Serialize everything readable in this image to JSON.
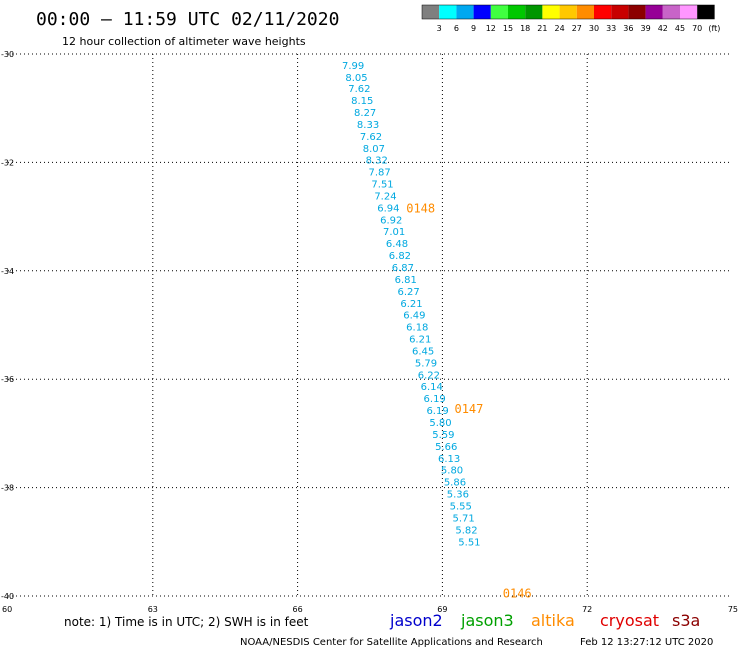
{
  "header": {
    "title": "00:00 – 11:59 UTC 02/11/2020",
    "subtitle": "12 hour collection of altimeter wave heights"
  },
  "color_scale": {
    "labels": [
      "3",
      "6",
      "9",
      "12",
      "15",
      "18",
      "21",
      "24",
      "27",
      "30",
      "33",
      "36",
      "39",
      "42",
      "45",
      "70",
      "(ft)"
    ],
    "colors": [
      "#7f7f7f",
      "#00ffff",
      "#00a8f0",
      "#0000ff",
      "#40ff40",
      "#00c800",
      "#009600",
      "#ffff00",
      "#ffc800",
      "#ff8c00",
      "#ff0000",
      "#c80000",
      "#8c0000",
      "#960096",
      "#c864c8",
      "#ff96ff",
      "#000000"
    ]
  },
  "footer": {
    "note": "note: 1) Time is in UTC; 2) SWH is in feet",
    "satellites": [
      {
        "name": "jason2",
        "color": "#0000cc"
      },
      {
        "name": "jason3",
        "color": "#00a000"
      },
      {
        "name": "altika",
        "color": "#ff8c00"
      },
      {
        "name": "cryosat",
        "color": "#e00000"
      },
      {
        "name": "s3a",
        "color": "#8b0000"
      }
    ],
    "credit": "NOAA/NESDIS Center for Satellite Applications and Research",
    "timestamp": "Feb 12 13:27:12 UTC 2020"
  },
  "chart_data": {
    "type": "scatter",
    "xlim": [
      60,
      75
    ],
    "ylim": [
      -40,
      -30
    ],
    "x_ticks": [
      60,
      63,
      66,
      69,
      72,
      75
    ],
    "y_ticks": [
      -30,
      -32,
      -34,
      -36,
      -38,
      -40
    ],
    "grid": true,
    "point_color": "#00a8e0",
    "points": [
      {
        "x": 67.15,
        "y": -30.2,
        "label": "7.99"
      },
      {
        "x": 67.22,
        "y": -30.42,
        "label": "8.05"
      },
      {
        "x": 67.28,
        "y": -30.63,
        "label": "7.62"
      },
      {
        "x": 67.34,
        "y": -30.85,
        "label": "8.15"
      },
      {
        "x": 67.4,
        "y": -31.07,
        "label": "8.27"
      },
      {
        "x": 67.46,
        "y": -31.29,
        "label": "8.33"
      },
      {
        "x": 67.52,
        "y": -31.51,
        "label": "7.62"
      },
      {
        "x": 67.58,
        "y": -31.73,
        "label": "8.07"
      },
      {
        "x": 67.64,
        "y": -31.95,
        "label": "8.32"
      },
      {
        "x": 67.7,
        "y": -32.17,
        "label": "7.87"
      },
      {
        "x": 67.76,
        "y": -32.39,
        "label": "7.51"
      },
      {
        "x": 67.82,
        "y": -32.61,
        "label": "7.24"
      },
      {
        "x": 67.88,
        "y": -32.83,
        "label": "6.94"
      },
      {
        "x": 67.94,
        "y": -33.05,
        "label": "6.92"
      },
      {
        "x": 68.0,
        "y": -33.27,
        "label": "7.01"
      },
      {
        "x": 68.06,
        "y": -33.49,
        "label": "6.48"
      },
      {
        "x": 68.12,
        "y": -33.71,
        "label": "6.82"
      },
      {
        "x": 68.18,
        "y": -33.93,
        "label": "6.87"
      },
      {
        "x": 68.24,
        "y": -34.15,
        "label": "6.81"
      },
      {
        "x": 68.3,
        "y": -34.37,
        "label": "6.27"
      },
      {
        "x": 68.36,
        "y": -34.59,
        "label": "6.21"
      },
      {
        "x": 68.42,
        "y": -34.81,
        "label": "6.49"
      },
      {
        "x": 68.48,
        "y": -35.03,
        "label": "6.18"
      },
      {
        "x": 68.54,
        "y": -35.25,
        "label": "6.21"
      },
      {
        "x": 68.6,
        "y": -35.47,
        "label": "6.45"
      },
      {
        "x": 68.66,
        "y": -35.69,
        "label": "5.79"
      },
      {
        "x": 68.72,
        "y": -35.91,
        "label": "6.22"
      },
      {
        "x": 68.78,
        "y": -36.13,
        "label": "6.14"
      },
      {
        "x": 68.84,
        "y": -36.35,
        "label": "6.19"
      },
      {
        "x": 68.9,
        "y": -36.57,
        "label": "6.19"
      },
      {
        "x": 68.96,
        "y": -36.79,
        "label": "5.80"
      },
      {
        "x": 69.02,
        "y": -37.01,
        "label": "5.59"
      },
      {
        "x": 69.08,
        "y": -37.23,
        "label": "5.66"
      },
      {
        "x": 69.14,
        "y": -37.45,
        "label": "6.13"
      },
      {
        "x": 69.2,
        "y": -37.67,
        "label": "5.80"
      },
      {
        "x": 69.26,
        "y": -37.89,
        "label": "5.86"
      },
      {
        "x": 69.32,
        "y": -38.11,
        "label": "5.36"
      },
      {
        "x": 69.38,
        "y": -38.33,
        "label": "5.55"
      },
      {
        "x": 69.44,
        "y": -38.55,
        "label": "5.71"
      },
      {
        "x": 69.5,
        "y": -38.77,
        "label": "5.82"
      },
      {
        "x": 69.56,
        "y": -38.99,
        "label": "5.51"
      }
    ],
    "pass_color": "#ff8c00",
    "passes": [
      {
        "x": 68.55,
        "y": -32.85,
        "label": "0148"
      },
      {
        "x": 69.55,
        "y": -36.55,
        "label": "0147"
      },
      {
        "x": 70.55,
        "y": -39.95,
        "label": "0146"
      }
    ]
  }
}
